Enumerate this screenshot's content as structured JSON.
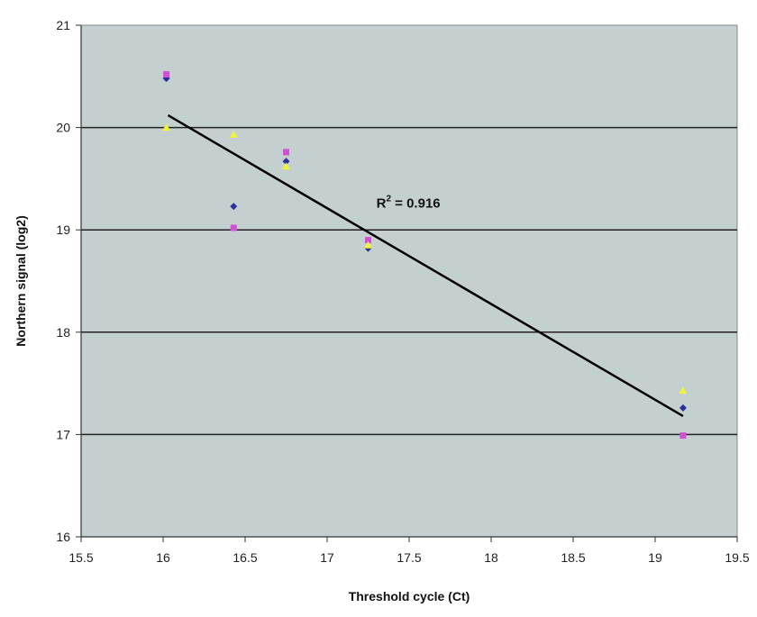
{
  "chart_data": {
    "type": "scatter",
    "title": "",
    "xlabel": "Threshold cycle (Ct)",
    "ylabel": "Northern signal (log2)",
    "xlim": [
      15.5,
      19.5
    ],
    "ylim": [
      16,
      21
    ],
    "xticks": [
      "15.5",
      "16",
      "16.5",
      "17",
      "17.5",
      "18",
      "18.5",
      "19",
      "19.5"
    ],
    "yticks": [
      "16",
      "17",
      "18",
      "19",
      "20",
      "21"
    ],
    "grid": "horizontal",
    "colors": {
      "plot_background": "#c4d0cf",
      "gridline": "#222222",
      "trendline": "#000000"
    },
    "series": [
      {
        "marker": "diamond",
        "color": "#2a2f9a",
        "points": [
          [
            16.02,
            20.48
          ],
          [
            16.43,
            19.23
          ],
          [
            16.75,
            19.67
          ],
          [
            17.25,
            18.82
          ],
          [
            19.17,
            17.26
          ]
        ]
      },
      {
        "marker": "square",
        "color": "#d24fd6",
        "points": [
          [
            16.02,
            20.52
          ],
          [
            16.43,
            19.02
          ],
          [
            16.75,
            19.76
          ],
          [
            17.25,
            18.9
          ],
          [
            19.17,
            16.99
          ]
        ]
      },
      {
        "marker": "triangle",
        "color": "#f2f23c",
        "points": [
          [
            16.02,
            20.0
          ],
          [
            16.43,
            19.93
          ],
          [
            16.75,
            19.62
          ],
          [
            17.25,
            18.85
          ],
          [
            19.17,
            17.43
          ]
        ]
      }
    ],
    "trendline": {
      "x": [
        16.03,
        19.17
      ],
      "y": [
        20.12,
        17.18
      ]
    },
    "annotation": {
      "prefix": "R",
      "superscript": "2",
      "suffix": " = 0.916",
      "x": 17.3,
      "y": 19.26
    }
  }
}
